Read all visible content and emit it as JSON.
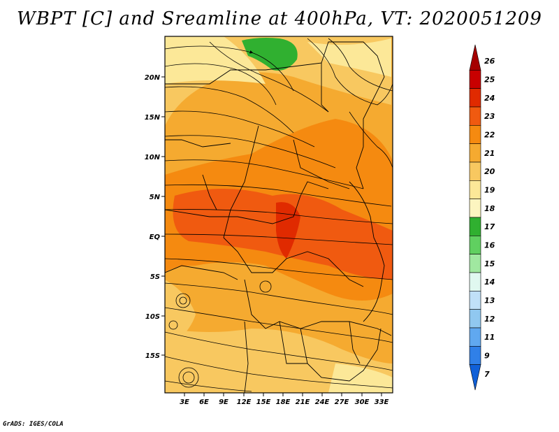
{
  "title": "WBPT [C] and Sreamline at 400hPa, VT: 2020051209",
  "credit": "GrADS: IGES/COLA",
  "map": {
    "lat_labels": [
      "20N",
      "15N",
      "10N",
      "5N",
      "EQ",
      "5S",
      "10S",
      "15S"
    ],
    "lon_labels": [
      "3E",
      "6E",
      "9E",
      "12E",
      "15E",
      "18E",
      "21E",
      "24E",
      "27E",
      "30E",
      "33E"
    ]
  },
  "colorbar": {
    "levels": [
      "26",
      "25",
      "24",
      "23",
      "22",
      "21",
      "20",
      "19",
      "18",
      "17",
      "16",
      "15",
      "14",
      "13",
      "12",
      "11",
      "9",
      "7"
    ],
    "colors": [
      "#a50000",
      "#c80000",
      "#e02a00",
      "#f05a10",
      "#f58a10",
      "#f5aa30",
      "#f8c860",
      "#fce898",
      "#fcf5c0",
      "#30b030",
      "#60d060",
      "#a0e8a0",
      "#e0f8f0",
      "#c0e0f8",
      "#90c8f0",
      "#60a8f0",
      "#3080e8",
      "#1060d8"
    ]
  }
}
